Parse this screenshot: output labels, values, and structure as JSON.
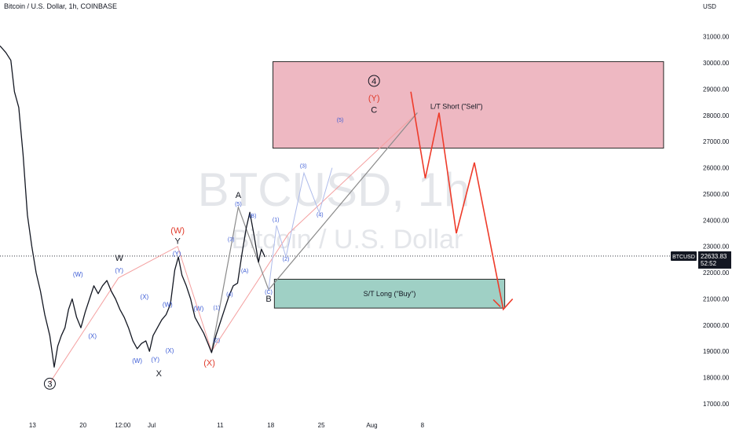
{
  "header": {
    "symbol_title": "Bitcoin / U.S. Dollar, 1h, COINBASE",
    "currency": "USD"
  },
  "chart_data": {
    "type": "line",
    "title": "Bitcoin / U.S. Dollar, 1h, COINBASE",
    "watermark_ticker": "BTCUSD, 1h",
    "watermark_name": "Bitcoin / U.S. Dollar",
    "y_unit": "USD",
    "ylim": [
      16400,
      32400
    ],
    "y_ticks": [
      17000,
      18000,
      19000,
      20000,
      21000,
      22000,
      23000,
      24000,
      25000,
      26000,
      27000,
      28000,
      29000,
      30000,
      31000
    ],
    "y_tick_labels": [
      "17000.00",
      "18000.00",
      "19000.00",
      "20000.00",
      "21000.00",
      "22000.00",
      "23000.00",
      "24000.00",
      "25000.00",
      "26000.00",
      "27000.00",
      "28000.00",
      "29000.00",
      "30000.00",
      "31000.00"
    ],
    "x_tick_labels": [
      "13",
      "20",
      "12:00",
      "Jul",
      "11",
      "18",
      "25",
      "Aug",
      "8"
    ],
    "x_tick_pos": [
      2.5,
      9.5,
      15,
      19,
      28.5,
      35.5,
      42.5,
      49.5,
      56.5
    ],
    "x_range": [
      -2,
      91
    ],
    "grid": false,
    "legend": "none",
    "last_price": {
      "symbol": "BTCUSD",
      "value": "22633.83",
      "countdown": "52:52",
      "y": 22633.83
    },
    "colors": {
      "candle": "#131722",
      "wxy_line": "#f4a0a0",
      "abc_line": "#8a8a8a",
      "subwave": "#aebbea",
      "forecast": "#ee3b2a",
      "short_zone": "#e8a0ad",
      "short_border": "#2a2a2a",
      "long_zone": "#9fd0c5",
      "long_border": "#2a2a2a",
      "blue_label": "#3b5bd5",
      "red_label": "#e03a2a"
    },
    "price_series": [
      [
        -2.0,
        30650
      ],
      [
        -1.2,
        30400
      ],
      [
        -0.5,
        30100
      ],
      [
        0.0,
        28900
      ],
      [
        0.6,
        28300
      ],
      [
        1.2,
        26500
      ],
      [
        1.8,
        24200
      ],
      [
        2.4,
        23000
      ],
      [
        3.0,
        22000
      ],
      [
        3.6,
        21300
      ],
      [
        4.2,
        20400
      ],
      [
        4.9,
        19600
      ],
      [
        5.5,
        18400
      ],
      [
        6.0,
        19200
      ],
      [
        6.5,
        19600
      ],
      [
        7.0,
        19900
      ],
      [
        7.5,
        20600
      ],
      [
        8.0,
        21000
      ],
      [
        8.6,
        20300
      ],
      [
        9.2,
        19900
      ],
      [
        9.8,
        20500
      ],
      [
        10.4,
        21000
      ],
      [
        11.0,
        21500
      ],
      [
        11.6,
        21200
      ],
      [
        12.2,
        21500
      ],
      [
        12.8,
        21700
      ],
      [
        13.4,
        21300
      ],
      [
        14.0,
        21000
      ],
      [
        14.6,
        20600
      ],
      [
        15.2,
        20300
      ],
      [
        15.8,
        19900
      ],
      [
        16.4,
        19400
      ],
      [
        17.0,
        19100
      ],
      [
        17.6,
        19300
      ],
      [
        18.2,
        19400
      ],
      [
        18.7,
        19000
      ],
      [
        19.2,
        19600
      ],
      [
        19.8,
        19900
      ],
      [
        20.4,
        20200
      ],
      [
        21.0,
        20400
      ],
      [
        21.6,
        20800
      ],
      [
        22.2,
        22100
      ],
      [
        22.7,
        22600
      ],
      [
        23.2,
        21900
      ],
      [
        23.8,
        21500
      ],
      [
        24.4,
        21000
      ],
      [
        25.0,
        20300
      ],
      [
        25.6,
        20000
      ],
      [
        26.2,
        19700
      ],
      [
        26.8,
        19300
      ],
      [
        27.3,
        18950
      ],
      [
        27.9,
        19600
      ],
      [
        28.5,
        20100
      ],
      [
        29.1,
        20600
      ],
      [
        29.7,
        21100
      ],
      [
        30.3,
        21500
      ],
      [
        30.9,
        21600
      ],
      [
        31.5,
        22700
      ],
      [
        32.1,
        23700
      ],
      [
        32.6,
        24300
      ],
      [
        33.2,
        23400
      ],
      [
        33.8,
        22400
      ],
      [
        34.2,
        22900
      ],
      [
        34.7,
        22600
      ]
    ],
    "wxy_path": [
      [
        4.9,
        17800
      ],
      [
        14.4,
        21800
      ],
      [
        22.6,
        23000
      ],
      [
        27.3,
        19000
      ],
      [
        38.0,
        23500
      ],
      [
        55.8,
        28100
      ]
    ],
    "abc_path": [
      [
        27.3,
        19000
      ],
      [
        31.0,
        24500
      ],
      [
        35.2,
        21350
      ],
      [
        55.8,
        28100
      ]
    ],
    "subwave_path": [
      [
        35.2,
        21350
      ],
      [
        36.3,
        23800
      ],
      [
        37.6,
        22600
      ],
      [
        40.1,
        25800
      ],
      [
        42.2,
        24300
      ],
      [
        44.0,
        26000
      ]
    ],
    "forecast_path": [
      [
        54.9,
        28900
      ],
      [
        56.9,
        25600
      ],
      [
        58.8,
        28100
      ],
      [
        61.2,
        23500
      ],
      [
        63.7,
        26200
      ],
      [
        67.7,
        20600
      ],
      [
        69.0,
        21000
      ]
    ],
    "forecast_arrow_tip": [
      67.3,
      20700
    ],
    "zones": [
      {
        "name": "short",
        "label": "L/T Short (\"Sell\")",
        "x": [
          35.8,
          89.9
        ],
        "y": [
          26750,
          30050
        ]
      },
      {
        "name": "long",
        "label": "S/T Long (\"Buy\")",
        "x": [
          36.0,
          67.9
        ],
        "y": [
          20650,
          21750
        ]
      }
    ],
    "wave_labels": [
      {
        "text": "3",
        "x": 4.9,
        "y": 17650,
        "color": "#131722",
        "size": 11,
        "circle": true
      },
      {
        "text": "W",
        "x": 14.5,
        "y": 22450,
        "color": "#131722",
        "size": 11
      },
      {
        "text": "X",
        "x": 20.0,
        "y": 18050,
        "color": "#131722",
        "size": 11
      },
      {
        "text": "Y",
        "x": 22.6,
        "y": 23100,
        "color": "#131722",
        "size": 11
      },
      {
        "text": "(W)",
        "x": 22.6,
        "y": 23500,
        "color": "#e03a2a",
        "size": 11
      },
      {
        "text": "(X)",
        "x": 27.0,
        "y": 18450,
        "color": "#e03a2a",
        "size": 11
      },
      {
        "text": "A",
        "x": 31.0,
        "y": 24850,
        "color": "#131722",
        "size": 11
      },
      {
        "text": "B",
        "x": 35.2,
        "y": 20900,
        "color": "#131722",
        "size": 11
      },
      {
        "text": "C",
        "x": 49.8,
        "y": 28100,
        "color": "#131722",
        "size": 11
      },
      {
        "text": "(Y)",
        "x": 49.8,
        "y": 28550,
        "color": "#e03a2a",
        "size": 11
      },
      {
        "text": "4",
        "x": 49.8,
        "y": 29200,
        "color": "#131722",
        "size": 11,
        "circle": true
      },
      {
        "text": "(W)",
        "x": 8.8,
        "y": 21850,
        "color": "#3b5bd5",
        "size": 8
      },
      {
        "text": "(Y)",
        "x": 14.5,
        "y": 22000,
        "color": "#3b5bd5",
        "size": 8
      },
      {
        "text": "(X)",
        "x": 10.8,
        "y": 19500,
        "color": "#3b5bd5",
        "size": 8
      },
      {
        "text": "(X)",
        "x": 18.0,
        "y": 21000,
        "color": "#3b5bd5",
        "size": 8
      },
      {
        "text": "(W)",
        "x": 17.0,
        "y": 18550,
        "color": "#3b5bd5",
        "size": 8
      },
      {
        "text": "(Y)",
        "x": 19.5,
        "y": 18600,
        "color": "#3b5bd5",
        "size": 8
      },
      {
        "text": "(X)",
        "x": 21.5,
        "y": 18950,
        "color": "#3b5bd5",
        "size": 8
      },
      {
        "text": "(W)",
        "x": 21.2,
        "y": 20700,
        "color": "#3b5bd5",
        "size": 8
      },
      {
        "text": "(Y)",
        "x": 22.5,
        "y": 22650,
        "color": "#3b5bd5",
        "size": 8
      },
      {
        "text": "(W)",
        "x": 25.5,
        "y": 20550,
        "color": "#3b5bd5",
        "size": 8
      },
      {
        "text": "(1)",
        "x": 28.0,
        "y": 20600,
        "color": "#3b5bd5",
        "size": 7
      },
      {
        "text": "(2)",
        "x": 28.0,
        "y": 19350,
        "color": "#3b5bd5",
        "size": 7
      },
      {
        "text": "(3)",
        "x": 30.0,
        "y": 23200,
        "color": "#3b5bd5",
        "size": 7
      },
      {
        "text": "(4)",
        "x": 29.8,
        "y": 21100,
        "color": "#3b5bd5",
        "size": 7
      },
      {
        "text": "(5)",
        "x": 31.0,
        "y": 24550,
        "color": "#3b5bd5",
        "size": 7
      },
      {
        "text": "(A)",
        "x": 31.9,
        "y": 22000,
        "color": "#3b5bd5",
        "size": 7
      },
      {
        "text": "(B)",
        "x": 33.0,
        "y": 24100,
        "color": "#3b5bd5",
        "size": 7
      },
      {
        "text": "(C)",
        "x": 35.2,
        "y": 21200,
        "color": "#3b5bd5",
        "size": 7
      },
      {
        "text": "(1)",
        "x": 36.2,
        "y": 23950,
        "color": "#3b5bd5",
        "size": 7
      },
      {
        "text": "(2)",
        "x": 37.6,
        "y": 22450,
        "color": "#3b5bd5",
        "size": 7
      },
      {
        "text": "(3)",
        "x": 40.0,
        "y": 26000,
        "color": "#3b5bd5",
        "size": 7
      },
      {
        "text": "(4)",
        "x": 42.3,
        "y": 24150,
        "color": "#3b5bd5",
        "size": 7
      },
      {
        "text": "(5)",
        "x": 45.1,
        "y": 27750,
        "color": "#3b5bd5",
        "size": 7
      }
    ]
  }
}
